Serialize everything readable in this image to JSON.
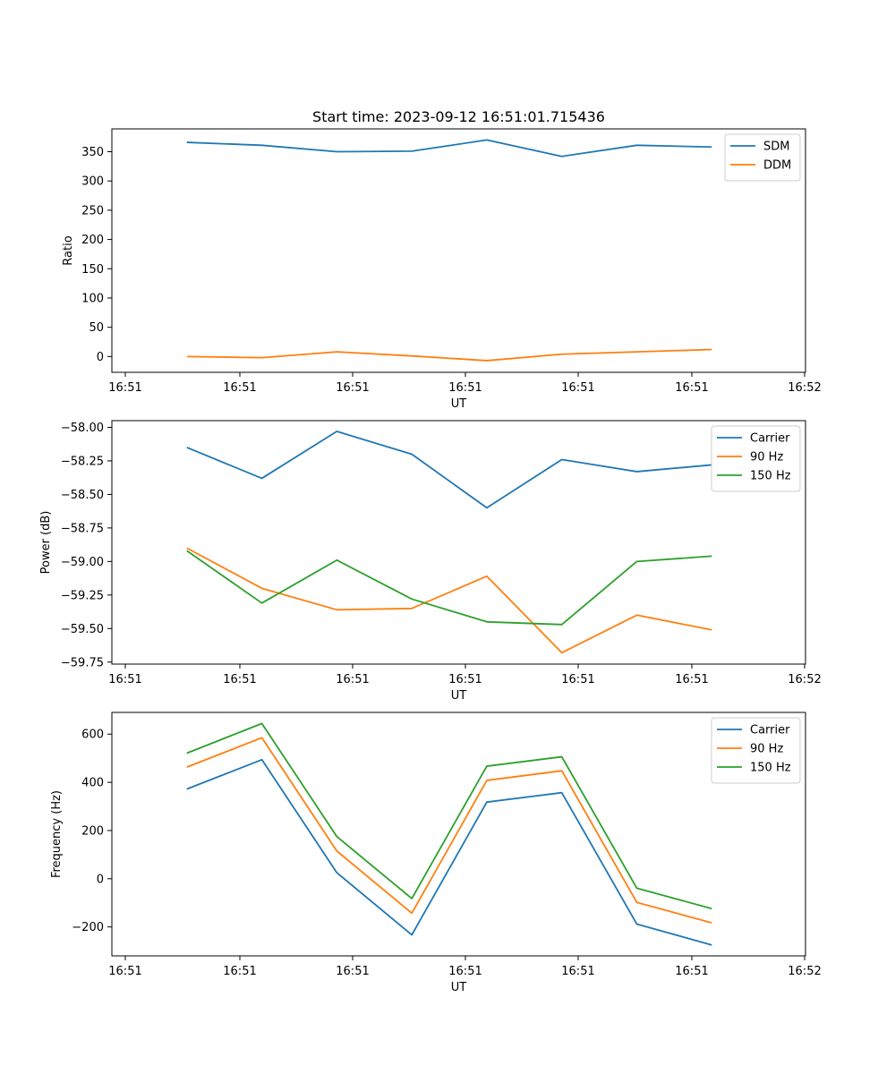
{
  "title": "Start time: 2023-09-12 16:51:01.715436",
  "chart_data": [
    {
      "type": "line",
      "title": "Start time: 2023-09-12 16:51:01.715436",
      "xlabel": "UT",
      "ylabel": "Ratio",
      "xticklabels": [
        "16:51",
        "16:51",
        "16:51",
        "16:51",
        "16:51",
        "16:51",
        "16:51"
      ],
      "yticks": [
        0,
        50,
        100,
        150,
        200,
        250,
        300,
        350
      ],
      "yticklabels": [
        "0",
        "50",
        "100",
        "150",
        "200",
        "250",
        "300",
        "350"
      ],
      "xlim": [
        0,
        9.25
      ],
      "ylim": [
        -27,
        389
      ],
      "legend_position": "top-right",
      "series": [
        {
          "name": "SDM",
          "color": "#1f77b4",
          "x": [
            1,
            2,
            3,
            4,
            5,
            6,
            7,
            8
          ],
          "values": [
            366,
            361,
            350,
            351,
            370,
            342,
            361,
            358
          ]
        },
        {
          "name": "DDM",
          "color": "#ff7f0e",
          "x": [
            1,
            2,
            3,
            4,
            5,
            6,
            7,
            8
          ],
          "values": [
            0,
            -2,
            8,
            1,
            -7,
            4,
            8,
            12
          ]
        }
      ]
    },
    {
      "type": "line",
      "xlabel": "UT",
      "ylabel": "Power (dB)",
      "xticklabels": [
        "16:51",
        "16:51",
        "16:51",
        "16:51",
        "16:51",
        "16:51",
        "16:51"
      ],
      "yticks": [
        -58.0,
        -58.25,
        -58.5,
        -58.75,
        -59.0,
        -59.25,
        -59.5,
        -59.75
      ],
      "yticklabels": [
        "−58.00",
        "−58.25",
        "−58.50",
        "−58.75",
        "−59.00",
        "−59.25",
        "−59.50",
        "−59.75"
      ],
      "xlim": [
        0,
        9.25
      ],
      "ylim": [
        -59.765,
        -57.95
      ],
      "legend_position": "top-right",
      "series": [
        {
          "name": "Carrier",
          "color": "#1f77b4",
          "x": [
            1,
            2,
            3,
            4,
            5,
            6,
            7,
            8
          ],
          "values": [
            -58.15,
            -58.38,
            -58.03,
            -58.2,
            -58.6,
            -58.24,
            -58.33,
            -58.28
          ]
        },
        {
          "name": "90 Hz",
          "color": "#ff7f0e",
          "x": [
            1,
            2,
            3,
            4,
            5,
            6,
            7,
            8
          ],
          "values": [
            -58.9,
            -59.2,
            -59.36,
            -59.35,
            -59.11,
            -59.68,
            -59.4,
            -59.51
          ]
        },
        {
          "name": "150 Hz",
          "color": "#2ca02c",
          "x": [
            1,
            2,
            3,
            4,
            5,
            6,
            7,
            8
          ],
          "values": [
            -58.92,
            -59.31,
            -58.99,
            -59.28,
            -59.45,
            -59.47,
            -59.0,
            -58.96
          ]
        }
      ]
    },
    {
      "type": "line",
      "xlabel": "UT",
      "ylabel": "Frequency (Hz)",
      "xticklabels": [
        "16:51",
        "16:51",
        "16:51",
        "16:51",
        "16:51",
        "16:51",
        "16:51"
      ],
      "yticks": [
        -200,
        0,
        200,
        400,
        600
      ],
      "yticklabels": [
        "−200",
        "0",
        "200",
        "400",
        "600"
      ],
      "xlim": [
        0,
        9.25
      ],
      "ylim": [
        -320,
        690
      ],
      "legend_position": "top-right",
      "series": [
        {
          "name": "Carrier",
          "color": "#1f77b4",
          "x": [
            1,
            2,
            3,
            4,
            5,
            6,
            7,
            8
          ],
          "values": [
            372,
            494,
            25,
            -233,
            318,
            357,
            -188,
            -275
          ]
        },
        {
          "name": "90 Hz",
          "color": "#ff7f0e",
          "x": [
            1,
            2,
            3,
            4,
            5,
            6,
            7,
            8
          ],
          "values": [
            463,
            585,
            115,
            -143,
            408,
            448,
            -98,
            -183
          ]
        },
        {
          "name": "150 Hz",
          "color": "#2ca02c",
          "x": [
            1,
            2,
            3,
            4,
            5,
            6,
            7,
            8
          ],
          "values": [
            521,
            644,
            175,
            -82,
            467,
            506,
            -39,
            -124
          ]
        }
      ]
    }
  ],
  "extra_xtick_labels": {
    "first": "16:51",
    "last": "16:52"
  }
}
